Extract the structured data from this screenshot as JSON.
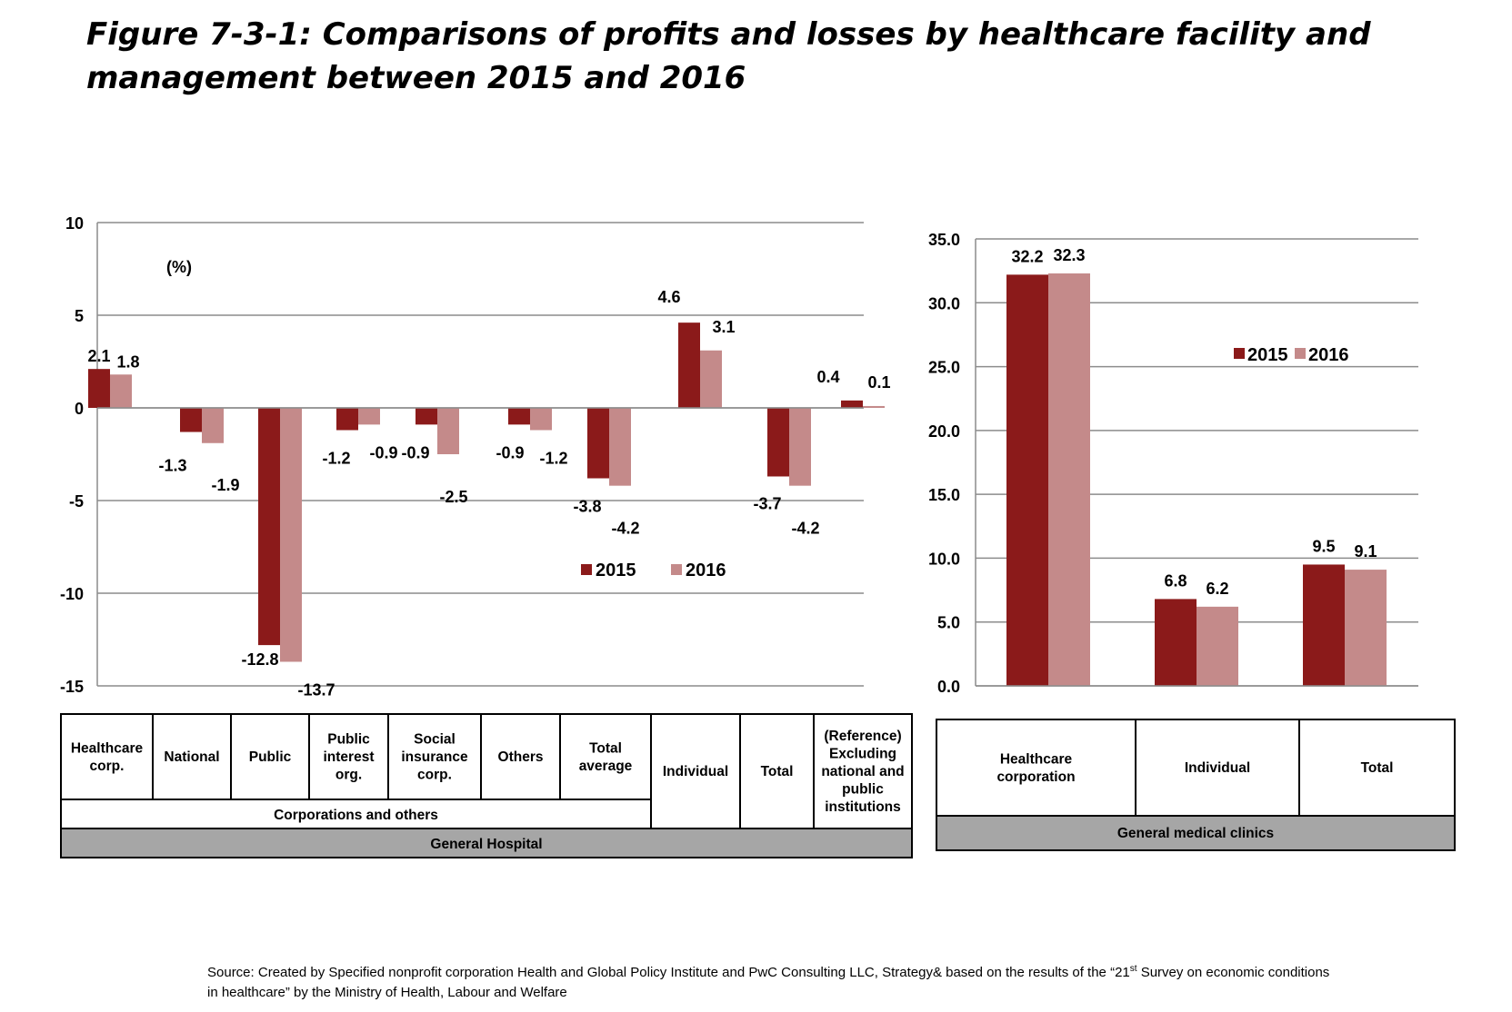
{
  "title": "Figure 7-3-1: Comparisons of profits and losses by healthcare facility and management between 2015 and 2016",
  "colors": {
    "s2015": "#8B1A1A",
    "s2016": "#C48A8A",
    "grid": "#8c8c8c",
    "band": "#a6a6a6"
  },
  "chart_data": [
    {
      "type": "bar",
      "unit_label": "(%)",
      "ylim": [
        -15,
        10
      ],
      "yticks": [
        10,
        5,
        0,
        -5,
        -10,
        -15
      ],
      "ytick_labels": [
        "10",
        "5",
        "0",
        "-5",
        "-10",
        "-15"
      ],
      "categories": [
        "Healthcare corp.",
        "National",
        "Public",
        "Public interest org.",
        "Social insurance corp.",
        "Others",
        "Total average",
        "Individual",
        "Total",
        "(Reference) Excluding national and public institutions"
      ],
      "series": [
        {
          "name": "2015",
          "values": [
            2.1,
            -1.3,
            -12.8,
            -1.2,
            -0.9,
            -0.9,
            -3.8,
            4.6,
            -3.7,
            0.4
          ],
          "labels": [
            "2.1",
            "-1.3",
            "-12.8",
            "-1.2",
            "-0.9",
            "-0.9",
            "-3.8",
            "4.6",
            "-3.7",
            "0.4"
          ]
        },
        {
          "name": "2016",
          "values": [
            1.8,
            -1.9,
            -13.7,
            -0.9,
            -2.5,
            -1.2,
            -4.2,
            3.1,
            -4.2,
            0.1
          ],
          "labels": [
            "1.8",
            "-1.9",
            "-13.7",
            "-0.9",
            "-2.5",
            "-1.2",
            "-4.2",
            "3.1",
            "-4.2",
            "0.1"
          ]
        }
      ],
      "legend": [
        "2015",
        "2016"
      ],
      "legend_position": "lower-right",
      "grid": true,
      "group_labels": [
        "Corporations and others",
        "General Hospital"
      ]
    },
    {
      "type": "bar",
      "ylim": [
        0,
        35
      ],
      "yticks": [
        35,
        30,
        25,
        20,
        15,
        10,
        5,
        0
      ],
      "ytick_labels": [
        "35.0",
        "30.0",
        "25.0",
        "20.0",
        "15.0",
        "10.0",
        "5.0",
        "0.0"
      ],
      "categories": [
        "Healthcare corporation",
        "Individual",
        "Total"
      ],
      "series": [
        {
          "name": "2015",
          "values": [
            32.2,
            6.8,
            9.5
          ],
          "labels": [
            "32.2",
            "6.8",
            "9.5"
          ]
        },
        {
          "name": "2016",
          "values": [
            32.3,
            6.2,
            9.1
          ],
          "labels": [
            "32.3",
            "6.2",
            "9.1"
          ]
        }
      ],
      "legend": [
        "2015",
        "2016"
      ],
      "legend_position": "upper-right",
      "grid": true,
      "group_labels": [
        "General medical clinics"
      ]
    }
  ],
  "source": {
    "line1_pre": "Source: Created by Specified nonprofit corporation Health and Global Policy Institute and PwC Consulting LLC, Strategy& based on the results of the “21",
    "line1_sup": "st",
    "line1_post": " Survey on economic conditions",
    "line2": "in healthcare” by the Ministry of Health, Labour and Welfare"
  }
}
